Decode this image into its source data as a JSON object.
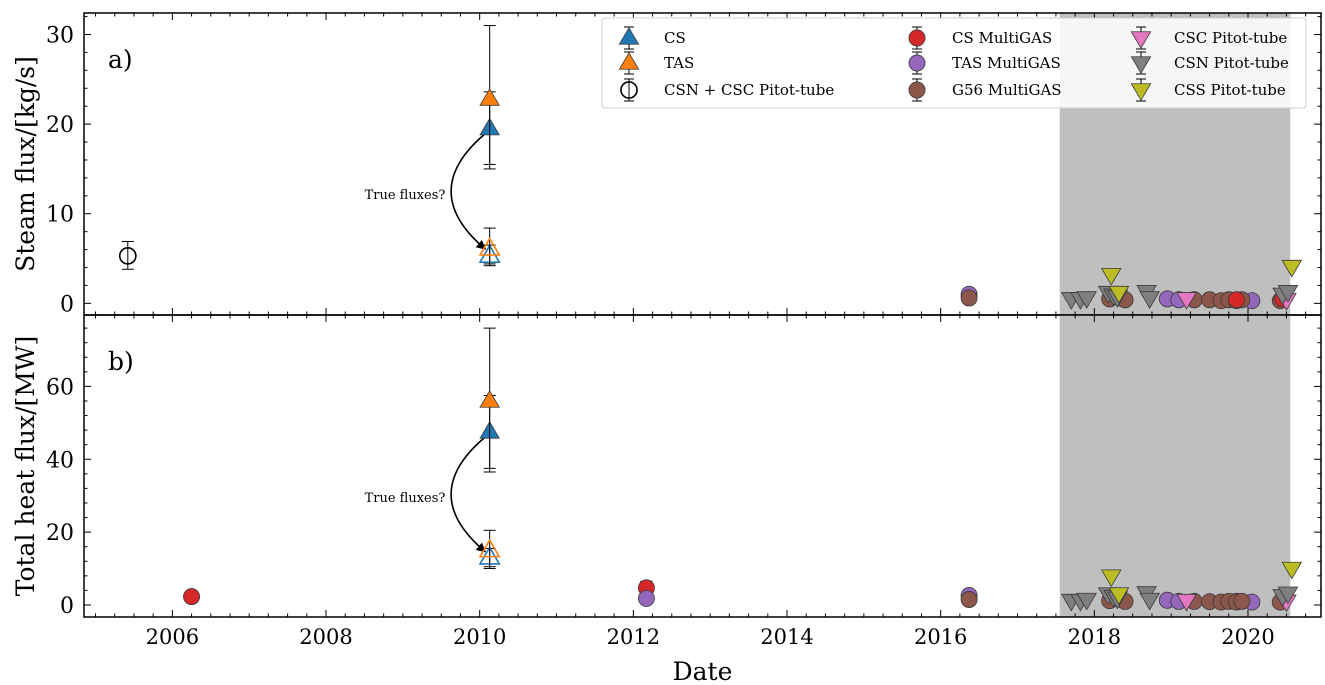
{
  "chart_data": {
    "type": "scatter",
    "xlabel": "Date",
    "x_ticks": [
      2006,
      2008,
      2010,
      2012,
      2014,
      2016,
      2018,
      2020
    ],
    "xlim": [
      2004.85,
      2020.95
    ],
    "shaded_region": [
      2017.55,
      2020.55
    ],
    "legend": {
      "placement": "top-right",
      "entries": [
        {
          "name": "CS",
          "marker": "triangle-up",
          "color": "#1f77b4",
          "filled": true,
          "errorbar": true
        },
        {
          "name": "TAS",
          "marker": "triangle-up",
          "color": "#ff7f0e",
          "filled": true,
          "errorbar": true
        },
        {
          "name": "CSN + CSC Pitot-tube",
          "marker": "circle",
          "color": "#000000",
          "filled": false,
          "errorbar": true
        },
        {
          "name": "CS MultiGAS",
          "marker": "circle",
          "color": "#d62728",
          "filled": true,
          "errorbar": true
        },
        {
          "name": "TAS MultiGAS",
          "marker": "circle",
          "color": "#9467bd",
          "filled": true,
          "errorbar": true
        },
        {
          "name": "G56 MultiGAS",
          "marker": "circle",
          "color": "#8c564b",
          "filled": true,
          "errorbar": true
        },
        {
          "name": "CSC Pitot-tube",
          "marker": "triangle-down",
          "color": "#e377c2",
          "filled": true,
          "errorbar": true
        },
        {
          "name": "CSN Pitot-tube",
          "marker": "triangle-down",
          "color": "#7f7f7f",
          "filled": true,
          "errorbar": true
        },
        {
          "name": "CSS Pitot-tube",
          "marker": "triangle-down",
          "color": "#bcbd22",
          "filled": true,
          "errorbar": true
        }
      ]
    },
    "panels": [
      {
        "label": "a)",
        "ylabel": "Steam flux/[kg/s]",
        "ylim": [
          -1.3,
          32.4
        ],
        "yticks": [
          0,
          10,
          20,
          30
        ],
        "annotation": {
          "text": "True fluxes?",
          "from": [
            2010.1,
            19.3
          ],
          "to": [
            2010.1,
            5.6
          ]
        },
        "series": [
          {
            "name": "CS",
            "points": [
              {
                "x": 2010.13,
                "y": 19.5,
                "err": [
                  15.5,
                  23.6
                ]
              }
            ]
          },
          {
            "name": "TAS",
            "points": [
              {
                "x": 2010.13,
                "y": 22.8,
                "err": [
                  15.0,
                  31.0
                ]
              }
            ]
          },
          {
            "name": "CS (open)",
            "open": true,
            "color": "#1f77b4",
            "marker": "triangle-up",
            "points": [
              {
                "x": 2010.13,
                "y": 5.3,
                "err": [
                  4.4,
                  6.5
                ]
              }
            ]
          },
          {
            "name": "TAS (open)",
            "open": true,
            "color": "#ff7f0e",
            "marker": "triangle-up",
            "points": [
              {
                "x": 2010.13,
                "y": 6.1,
                "err": [
                  4.2,
                  8.4
                ]
              }
            ]
          },
          {
            "name": "CSN + CSC Pitot-tube",
            "points": [
              {
                "x": 2005.42,
                "y": 5.3,
                "err": [
                  3.8,
                  6.9
                ]
              }
            ]
          },
          {
            "name": "TAS MultiGAS",
            "points": [
              {
                "x": 2016.37,
                "y": 1.0
              },
              {
                "x": 2018.35,
                "y": 0.6
              },
              {
                "x": 2018.95,
                "y": 0.5
              },
              {
                "x": 2019.1,
                "y": 0.4
              },
              {
                "x": 2020.05,
                "y": 0.3
              }
            ]
          },
          {
            "name": "G56 MultiGAS",
            "points": [
              {
                "x": 2016.37,
                "y": 0.6
              },
              {
                "x": 2018.2,
                "y": 0.5
              },
              {
                "x": 2018.4,
                "y": 0.4
              },
              {
                "x": 2019.3,
                "y": 0.4
              },
              {
                "x": 2019.5,
                "y": 0.4
              },
              {
                "x": 2019.65,
                "y": 0.3
              },
              {
                "x": 2019.75,
                "y": 0.4
              },
              {
                "x": 2019.85,
                "y": 0.3
              },
              {
                "x": 2019.92,
                "y": 0.4
              },
              {
                "x": 2020.42,
                "y": 0.3
              }
            ]
          },
          {
            "name": "CS MultiGAS",
            "points": [
              {
                "x": 2019.85,
                "y": 0.4
              },
              {
                "x": 2020.45,
                "y": 0.5
              }
            ]
          },
          {
            "name": "CSC Pitot-tube",
            "points": [
              {
                "x": 2018.3,
                "y": 0.8
              },
              {
                "x": 2019.2,
                "y": 0.5
              },
              {
                "x": 2020.5,
                "y": 0.4
              }
            ]
          },
          {
            "name": "CSN Pitot-tube",
            "points": [
              {
                "x": 2017.7,
                "y": 0.5
              },
              {
                "x": 2017.82,
                "y": 0.5
              },
              {
                "x": 2017.9,
                "y": 0.6
              },
              {
                "x": 2018.18,
                "y": 1.2
              },
              {
                "x": 2018.25,
                "y": 0.9
              },
              {
                "x": 2018.3,
                "y": 0.7
              },
              {
                "x": 2018.68,
                "y": 1.3
              },
              {
                "x": 2018.72,
                "y": 0.6
              },
              {
                "x": 2020.45,
                "y": 1.0
              },
              {
                "x": 2020.52,
                "y": 1.3
              }
            ]
          },
          {
            "name": "CSS Pitot-tube",
            "points": [
              {
                "x": 2018.22,
                "y": 3.2
              },
              {
                "x": 2018.32,
                "y": 1.2
              },
              {
                "x": 2020.57,
                "y": 4.1
              }
            ]
          }
        ]
      },
      {
        "label": "b)",
        "ylabel": "Total heat flux/[MW]",
        "ylim": [
          -3.3,
          79.6
        ],
        "yticks": [
          0,
          20,
          40,
          60
        ],
        "annotation": {
          "text": "True fluxes?",
          "from": [
            2010.1,
            47
          ],
          "to": [
            2010.1,
            13.5
          ]
        },
        "series": [
          {
            "name": "CS",
            "points": [
              {
                "x": 2010.13,
                "y": 47.5,
                "err": [
                  37.5,
                  57.5
                ]
              }
            ]
          },
          {
            "name": "TAS",
            "points": [
              {
                "x": 2010.13,
                "y": 56.0,
                "err": [
                  36.5,
                  76.0
                ]
              }
            ]
          },
          {
            "name": "CS (open)",
            "open": true,
            "color": "#1f77b4",
            "marker": "triangle-up",
            "points": [
              {
                "x": 2010.13,
                "y": 13.0,
                "err": [
                  10.5,
                  15.5
                ]
              }
            ]
          },
          {
            "name": "TAS (open)",
            "open": true,
            "color": "#ff7f0e",
            "marker": "triangle-up",
            "points": [
              {
                "x": 2010.13,
                "y": 15.0,
                "err": [
                  10.0,
                  20.5
                ]
              }
            ]
          },
          {
            "name": "CS MultiGAS",
            "points": [
              {
                "x": 2006.25,
                "y": 2.3
              },
              {
                "x": 2012.17,
                "y": 4.7,
                "err": [
                  3.0,
                  6.5
                ]
              },
              {
                "x": 2019.85,
                "y": 1.0
              },
              {
                "x": 2020.45,
                "y": 1.2
              }
            ]
          },
          {
            "name": "TAS MultiGAS",
            "points": [
              {
                "x": 2012.17,
                "y": 1.8
              },
              {
                "x": 2016.37,
                "y": 2.6
              },
              {
                "x": 2018.35,
                "y": 1.5
              },
              {
                "x": 2018.95,
                "y": 1.3
              },
              {
                "x": 2019.1,
                "y": 1.0
              },
              {
                "x": 2020.05,
                "y": 0.8
              }
            ]
          },
          {
            "name": "G56 MultiGAS",
            "points": [
              {
                "x": 2016.37,
                "y": 1.5
              },
              {
                "x": 2018.2,
                "y": 1.2
              },
              {
                "x": 2018.4,
                "y": 1.0
              },
              {
                "x": 2019.3,
                "y": 1.0
              },
              {
                "x": 2019.5,
                "y": 0.9
              },
              {
                "x": 2019.65,
                "y": 0.8
              },
              {
                "x": 2019.75,
                "y": 1.0
              },
              {
                "x": 2019.85,
                "y": 0.8
              },
              {
                "x": 2019.92,
                "y": 1.0
              },
              {
                "x": 2020.42,
                "y": 0.8
              }
            ]
          },
          {
            "name": "CSC Pitot-tube",
            "points": [
              {
                "x": 2018.3,
                "y": 2.0
              },
              {
                "x": 2019.2,
                "y": 1.2
              },
              {
                "x": 2020.5,
                "y": 1.0
              }
            ]
          },
          {
            "name": "CSN Pitot-tube",
            "points": [
              {
                "x": 2017.7,
                "y": 1.2
              },
              {
                "x": 2017.82,
                "y": 1.2
              },
              {
                "x": 2017.9,
                "y": 1.5
              },
              {
                "x": 2018.18,
                "y": 3.0
              },
              {
                "x": 2018.25,
                "y": 2.3
              },
              {
                "x": 2018.3,
                "y": 1.8
              },
              {
                "x": 2018.68,
                "y": 3.3
              },
              {
                "x": 2018.72,
                "y": 1.5
              },
              {
                "x": 2020.45,
                "y": 2.5
              },
              {
                "x": 2020.52,
                "y": 3.2
              }
            ]
          },
          {
            "name": "CSS Pitot-tube",
            "points": [
              {
                "x": 2018.22,
                "y": 7.9
              },
              {
                "x": 2018.32,
                "y": 3.0
              },
              {
                "x": 2020.57,
                "y": 10.0
              }
            ]
          }
        ]
      }
    ]
  }
}
